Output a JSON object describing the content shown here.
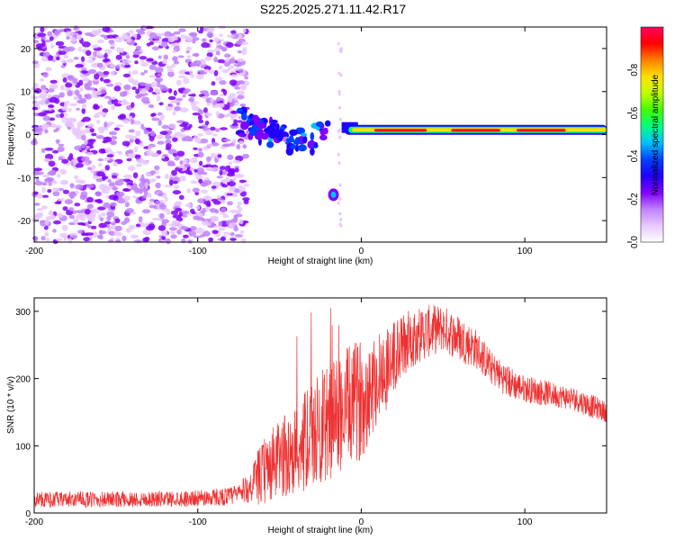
{
  "title": "S225.2025.271.11.42.R17",
  "chart_data": [
    {
      "type": "heatmap",
      "name": "spectrogram",
      "xlabel": "Height of straight line (km)",
      "ylabel": "Frequency (Hz)",
      "xlim": [
        -200,
        150
      ],
      "ylim": [
        -25,
        25
      ],
      "x_ticks": [
        -200,
        -100,
        0,
        100
      ],
      "y_ticks": [
        -20,
        -10,
        0,
        10,
        20
      ],
      "colorbar": {
        "label": "Normalized spectral amplitude",
        "range": [
          0,
          1
        ],
        "ticks": [
          "0.0",
          "0.2",
          "0.4",
          "0.6",
          "0.8"
        ],
        "ticks_values": [
          0.0,
          0.2,
          0.4,
          0.6,
          0.8
        ],
        "colors": [
          "#ffffff",
          "#e8c8ff",
          "#c080ff",
          "#8000ff",
          "#2000ff",
          "#0040ff",
          "#00c0ff",
          "#00ff80",
          "#40ff00",
          "#c0ff00",
          "#ffe000",
          "#ff8000",
          "#ff0000",
          "#ff0060"
        ]
      },
      "features": [
        {
          "label": "noise",
          "x_range": [
            -200,
            -70
          ],
          "y_range": [
            -25,
            25
          ],
          "amplitude": 0.08
        },
        {
          "label": "transition blobs",
          "x_range": [
            -75,
            -20
          ],
          "y_range": [
            -8,
            6
          ],
          "amplitude": 0.3
        },
        {
          "label": "isolated blob",
          "x": -17,
          "y": -14,
          "amplitude": 0.45
        },
        {
          "label": "carrier line",
          "x_range": [
            -10,
            150
          ],
          "y": 1,
          "amplitude": 0.9
        }
      ]
    },
    {
      "type": "line",
      "name": "snr",
      "xlabel": "Height of straight line (km)",
      "ylabel": "SNR (10 * v/v)",
      "xlim": [
        -200,
        150
      ],
      "ylim": [
        0,
        320
      ],
      "x_ticks": [
        -200,
        -100,
        0,
        100
      ],
      "y_ticks": [
        0,
        100,
        200,
        300
      ],
      "color": "#ee3030",
      "envelope": {
        "x": [
          -200,
          -150,
          -100,
          -80,
          -70,
          -60,
          -50,
          -40,
          -30,
          -20,
          -10,
          0,
          10,
          20,
          30,
          40,
          50,
          60,
          70,
          80,
          90,
          100,
          110,
          120,
          130,
          140,
          150
        ],
        "y": [
          20,
          20,
          22,
          25,
          35,
          60,
          80,
          95,
          115,
          135,
          155,
          170,
          200,
          230,
          260,
          270,
          275,
          260,
          245,
          215,
          195,
          185,
          180,
          175,
          170,
          160,
          150
        ],
        "spread": [
          12,
          12,
          12,
          14,
          20,
          50,
          60,
          70,
          80,
          90,
          90,
          90,
          70,
          60,
          45,
          40,
          35,
          35,
          30,
          25,
          25,
          20,
          20,
          18,
          18,
          18,
          15
        ]
      }
    }
  ]
}
